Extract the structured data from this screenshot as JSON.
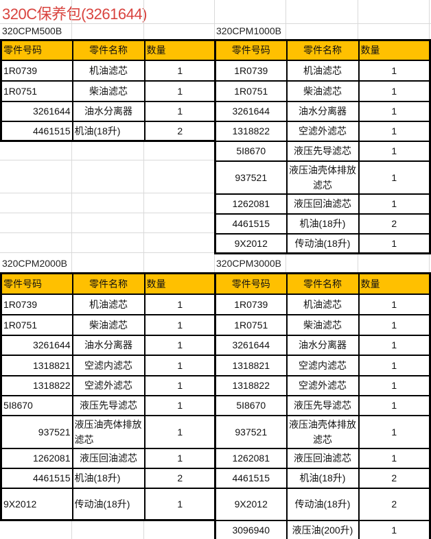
{
  "title": "320C保养包(3261644)",
  "header_color": "#ffc000",
  "title_color": "#d9443f",
  "columns": [
    "零件号码",
    "零件名称",
    "数量"
  ],
  "tables": [
    {
      "label": "320CPM500B",
      "rows": [
        [
          "1R0739",
          "机油滤芯",
          "1"
        ],
        [
          "1R0751",
          "柴油滤芯",
          "1"
        ],
        [
          "3261644",
          "油水分离器",
          "1"
        ],
        [
          "4461515",
          "机油(18升)",
          "2"
        ]
      ]
    },
    {
      "label": "320CPM1000B",
      "rows": [
        [
          "1R0739",
          "机油滤芯",
          "1"
        ],
        [
          "1R0751",
          "柴油滤芯",
          "1"
        ],
        [
          "3261644",
          "油水分离器",
          "1"
        ],
        [
          "1318822",
          "空滤外滤芯",
          "1"
        ],
        [
          "5I8670",
          "液压先导滤芯",
          "1"
        ],
        [
          "937521",
          "液压油壳体排放滤芯",
          "1"
        ],
        [
          "1262081",
          "液压回油滤芯",
          "1"
        ],
        [
          "4461515",
          "机油(18升)",
          "2"
        ],
        [
          "9X2012",
          "传动油(18升)",
          "1"
        ]
      ]
    },
    {
      "label": "320CPM2000B",
      "rows": [
        [
          "1R0739",
          "机油滤芯",
          "1"
        ],
        [
          "1R0751",
          "柴油滤芯",
          "1"
        ],
        [
          "3261644",
          "油水分离器",
          "1"
        ],
        [
          "1318821",
          "空滤内滤芯",
          "1"
        ],
        [
          "1318822",
          "空滤外滤芯",
          "1"
        ],
        [
          "5I8670",
          "液压先导滤芯",
          "1"
        ],
        [
          "937521",
          "液压油壳体排放滤芯",
          "1"
        ],
        [
          "1262081",
          "液压回油滤芯",
          "1"
        ],
        [
          "4461515",
          "机油(18升)",
          "2"
        ],
        [
          "9X2012",
          "传动油(18升)",
          "1"
        ]
      ]
    },
    {
      "label": "320CPM3000B",
      "rows": [
        [
          "1R0739",
          "机油滤芯",
          "1"
        ],
        [
          "1R0751",
          "柴油滤芯",
          "1"
        ],
        [
          "3261644",
          "油水分离器",
          "1"
        ],
        [
          "1318821",
          "空滤内滤芯",
          "1"
        ],
        [
          "1318822",
          "空滤外滤芯",
          "1"
        ],
        [
          "5I8670",
          "液压先导滤芯",
          "1"
        ],
        [
          "937521",
          "液压油壳体排放滤芯",
          "1"
        ],
        [
          "1262081",
          "液压回油滤芯",
          "1"
        ],
        [
          "4461515",
          "机油(18升)",
          "2"
        ],
        [
          "9X2012",
          "传动油(18升)",
          "2"
        ],
        [
          "3096940",
          "液压油(200升)",
          "1"
        ]
      ]
    }
  ]
}
